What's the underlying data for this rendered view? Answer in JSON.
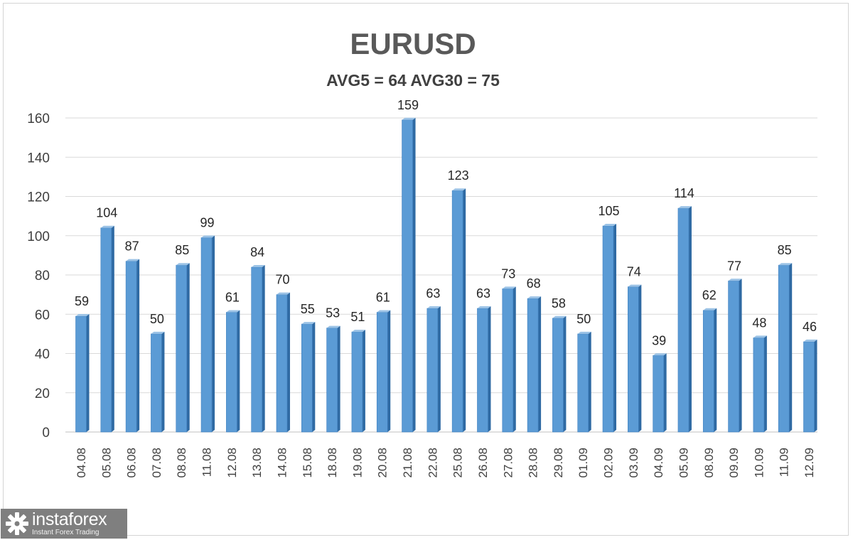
{
  "chart_data": {
    "type": "bar",
    "title": "EURUSD",
    "subtitle": "AVG5 = 64 AVG30 = 75",
    "categories": [
      "04.08",
      "05.08",
      "06.08",
      "07.08",
      "08.08",
      "11.08",
      "12.08",
      "13.08",
      "14.08",
      "15.08",
      "18.08",
      "19.08",
      "20.08",
      "21.08",
      "22.08",
      "25.08",
      "26.08",
      "27.08",
      "28.08",
      "29.08",
      "01.09",
      "02.09",
      "03.09",
      "04.09",
      "05.09",
      "08.09",
      "09.09",
      "10.09",
      "11.09",
      "12.09"
    ],
    "values": [
      59,
      104,
      87,
      50,
      85,
      99,
      61,
      84,
      70,
      55,
      53,
      51,
      61,
      159,
      63,
      123,
      63,
      73,
      68,
      58,
      50,
      105,
      74,
      39,
      114,
      62,
      77,
      48,
      85,
      46
    ],
    "ylim": [
      0,
      160
    ],
    "yticks": [
      0,
      20,
      40,
      60,
      80,
      100,
      120,
      140,
      160
    ],
    "grid": true,
    "bar_color": "#5b9bd5",
    "bar_side_color": "#2f6aa3",
    "bar_top_color": "#9cc3e6"
  },
  "watermark": {
    "brand": "instaforex",
    "tagline": "Instant Forex Trading"
  }
}
